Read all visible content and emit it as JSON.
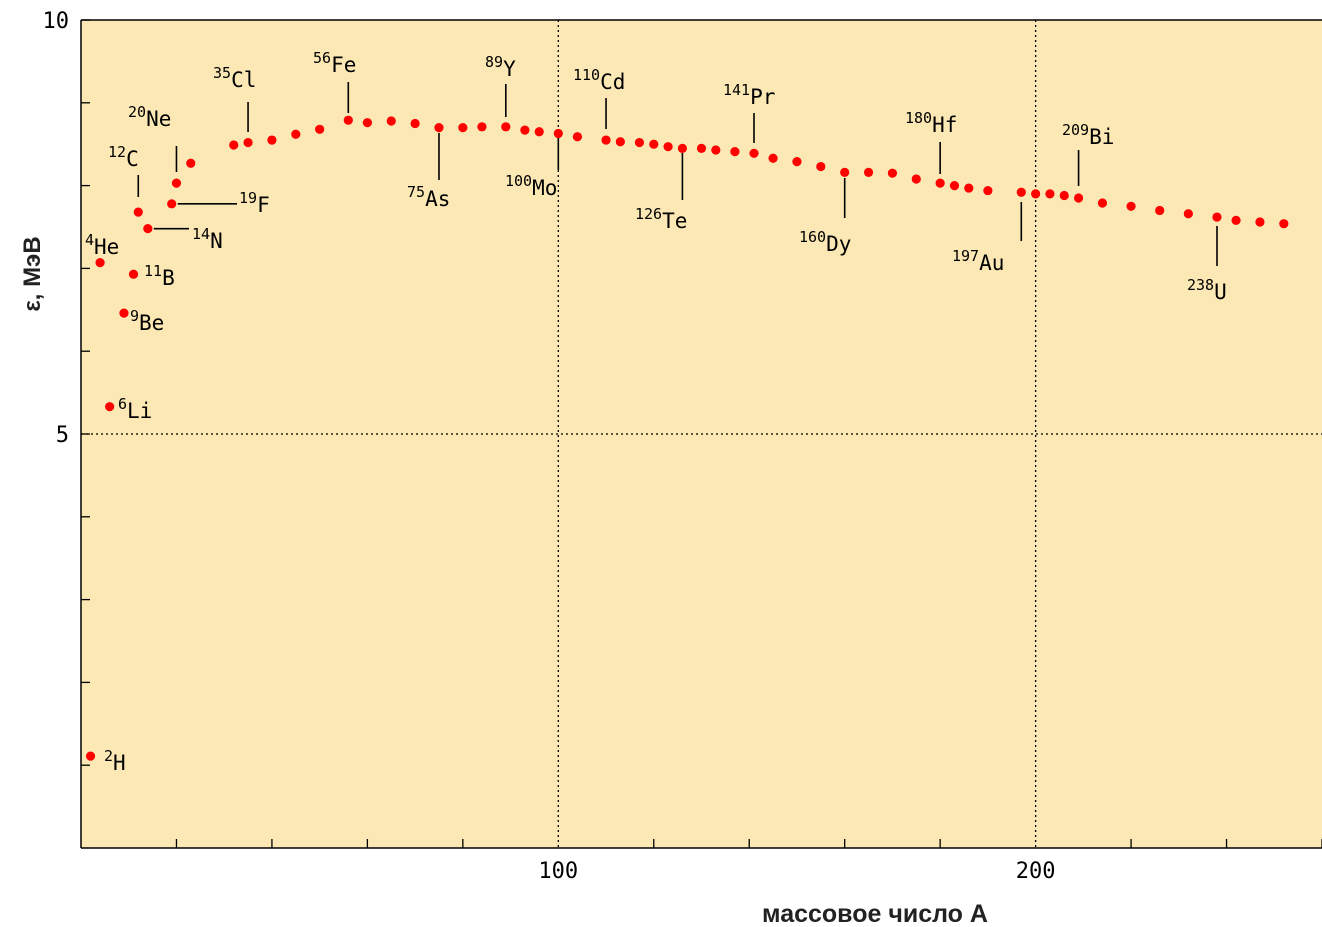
{
  "chart_data": {
    "type": "scatter",
    "title": "",
    "xlabel": "массовое число A",
    "ylabel": "ε, МэВ",
    "xlim": [
      0,
      260
    ],
    "ylim": [
      0,
      10
    ],
    "xticks": [
      {
        "value": 100,
        "label": "100"
      },
      {
        "value": 200,
        "label": "200"
      }
    ],
    "yticks": [
      {
        "value": 5,
        "label": "5"
      },
      {
        "value": 10,
        "label": "10"
      }
    ],
    "grid": true,
    "colors": {
      "background": "#fbe8b4",
      "point": "#ff0000",
      "grid": "#000000"
    },
    "series": [
      {
        "x": [
          2,
          4,
          6,
          9,
          11,
          12,
          14,
          19,
          20,
          23,
          32,
          35,
          40,
          45,
          50,
          56,
          60,
          65,
          70,
          75,
          80,
          84,
          89,
          93,
          96,
          100,
          104,
          110,
          113,
          117,
          120,
          123,
          126,
          130,
          133,
          137,
          141,
          145,
          150,
          155,
          160,
          165,
          170,
          175,
          180,
          183,
          186,
          190,
          197,
          200,
          203,
          206,
          209,
          214,
          220,
          226,
          232,
          238,
          242,
          247,
          252
        ],
        "y": [
          1.11,
          7.07,
          5.33,
          6.46,
          6.93,
          7.68,
          7.48,
          7.78,
          8.03,
          8.27,
          8.49,
          8.52,
          8.55,
          8.62,
          8.68,
          8.79,
          8.76,
          8.78,
          8.75,
          8.7,
          8.7,
          8.71,
          8.71,
          8.67,
          8.65,
          8.63,
          8.59,
          8.55,
          8.53,
          8.52,
          8.5,
          8.47,
          8.45,
          8.45,
          8.43,
          8.41,
          8.39,
          8.33,
          8.29,
          8.23,
          8.16,
          8.16,
          8.15,
          8.08,
          8.03,
          8.0,
          7.97,
          7.94,
          7.92,
          7.9,
          7.9,
          7.88,
          7.85,
          7.79,
          7.75,
          7.7,
          7.66,
          7.62,
          7.58,
          7.56,
          7.54
        ]
      }
    ],
    "annotations": [
      {
        "mass": "2",
        "el": "H",
        "x": 2,
        "y": 1.11
      },
      {
        "mass": "4",
        "el": "He",
        "x": 4,
        "y": 7.07
      },
      {
        "mass": "6",
        "el": "Li",
        "x": 6,
        "y": 5.33
      },
      {
        "mass": "9",
        "el": "Be",
        "x": 9,
        "y": 6.46
      },
      {
        "mass": "11",
        "el": "B",
        "x": 11,
        "y": 6.93
      },
      {
        "mass": "12",
        "el": "C",
        "x": 12,
        "y": 7.68
      },
      {
        "mass": "14",
        "el": "N",
        "x": 14,
        "y": 7.48
      },
      {
        "mass": "19",
        "el": "F",
        "x": 19,
        "y": 7.78
      },
      {
        "mass": "20",
        "el": "Ne",
        "x": 20,
        "y": 8.03
      },
      {
        "mass": "35",
        "el": "Cl",
        "x": 35,
        "y": 8.52
      },
      {
        "mass": "56",
        "el": "Fe",
        "x": 56,
        "y": 8.79
      },
      {
        "mass": "75",
        "el": "As",
        "x": 75,
        "y": 8.7
      },
      {
        "mass": "89",
        "el": "Y",
        "x": 89,
        "y": 8.71
      },
      {
        "mass": "100",
        "el": "Mo",
        "x": 100,
        "y": 8.63
      },
      {
        "mass": "110",
        "el": "Cd",
        "x": 110,
        "y": 8.55
      },
      {
        "mass": "126",
        "el": "Te",
        "x": 126,
        "y": 8.45
      },
      {
        "mass": "141",
        "el": "Pr",
        "x": 141,
        "y": 8.39
      },
      {
        "mass": "160",
        "el": "Dy",
        "x": 160,
        "y": 8.16
      },
      {
        "mass": "180",
        "el": "Hf",
        "x": 180,
        "y": 8.03
      },
      {
        "mass": "197",
        "el": "Au",
        "x": 197,
        "y": 7.92
      },
      {
        "mass": "209",
        "el": "Bi",
        "x": 209,
        "y": 7.85
      },
      {
        "mass": "238",
        "el": "U",
        "x": 238,
        "y": 7.62
      }
    ]
  }
}
